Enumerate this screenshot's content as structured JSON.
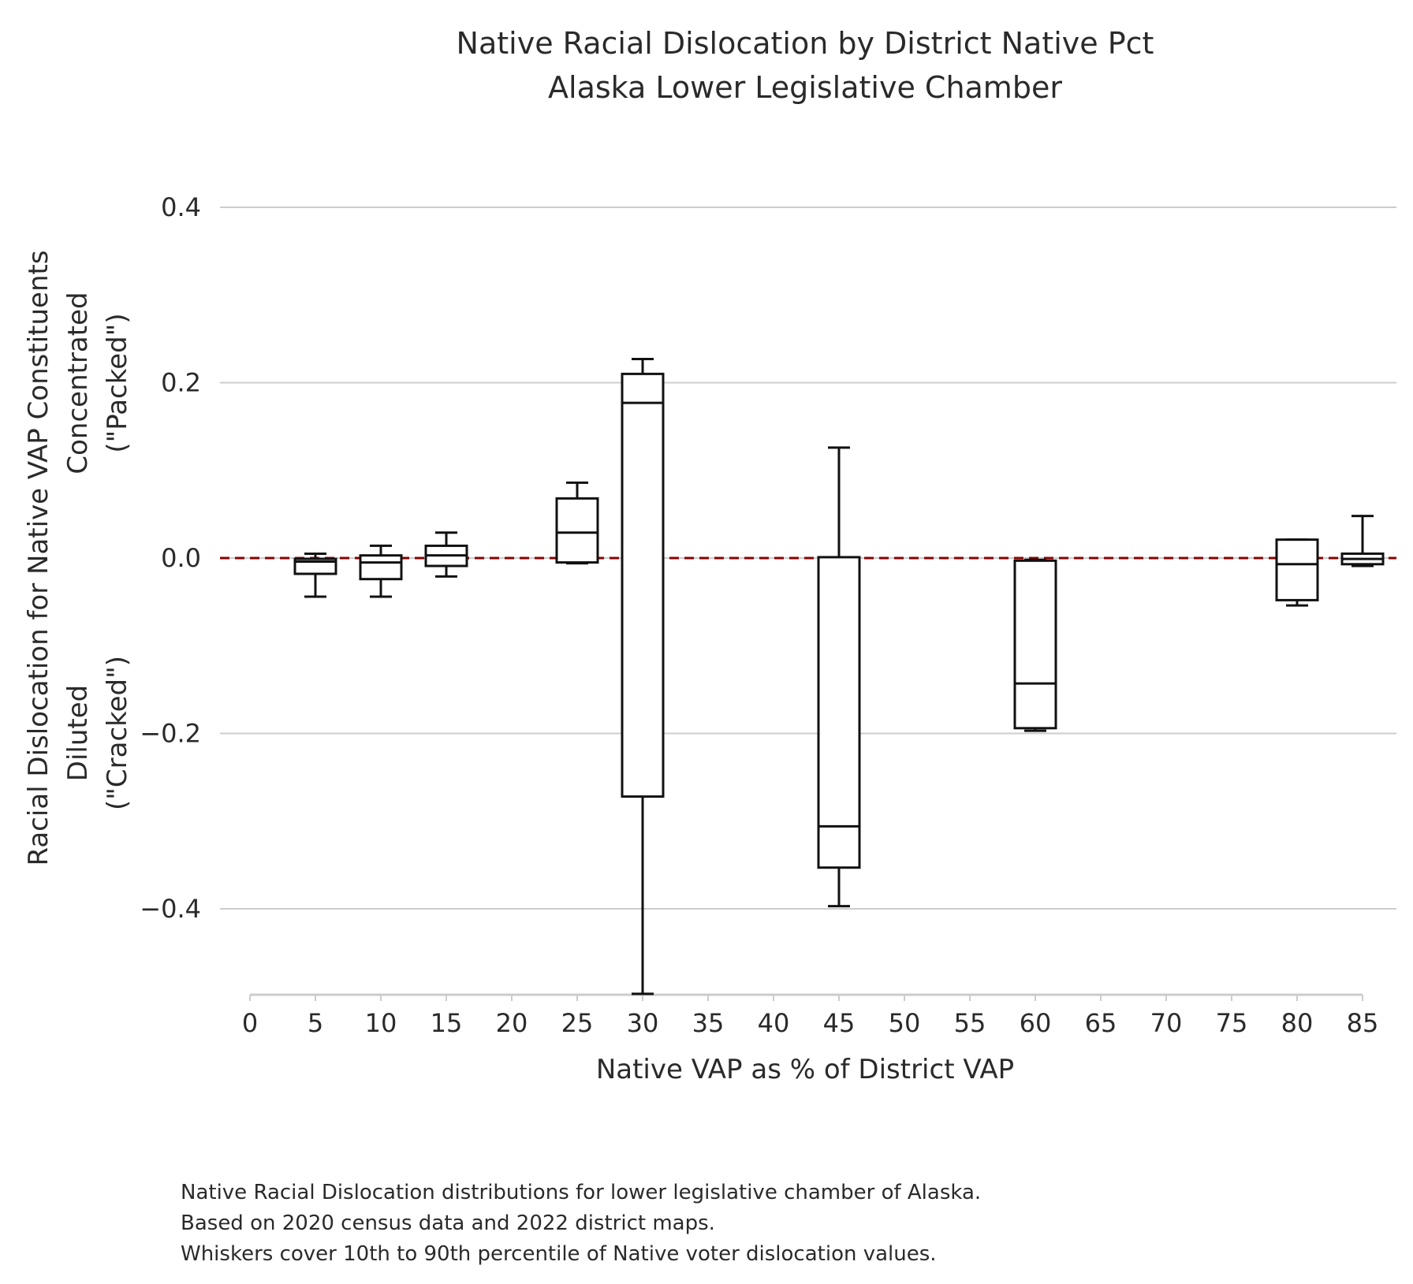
{
  "chart_data": {
    "type": "box",
    "title": [
      "Native Racial Dislocation by District Native Pct",
      "Alaska Lower Legislative Chamber"
    ],
    "xlabel": "Native VAP as % of District VAP",
    "ylabel": [
      "Racial Dislocation for Native VAP Constituents",
      "Concentrated",
      "(\"Packed\")",
      "Diluted",
      "(\"Cracked\")"
    ],
    "caption": [
      "Native Racial Dislocation distributions for lower legislative chamber of Alaska.",
      "Based on 2020 census data and 2022 district maps.",
      "Whiskers cover 10th to 90th percentile of Native voter dislocation values."
    ],
    "xlim": [
      0,
      85
    ],
    "ylim": [
      -0.5,
      0.45
    ],
    "x_ticks": [
      0,
      5,
      10,
      15,
      20,
      25,
      30,
      35,
      40,
      45,
      50,
      55,
      60,
      65,
      70,
      75,
      80,
      85
    ],
    "x_tick_labels": [
      "0",
      "5",
      "10",
      "15",
      "20",
      "25",
      "30",
      "35",
      "40",
      "45",
      "50",
      "55",
      "60",
      "65",
      "70",
      "75",
      "80",
      "85"
    ],
    "y_ticks": [
      0.4,
      0.2,
      0.0,
      -0.2,
      -0.4
    ],
    "y_tick_labels": [
      "0.4",
      "0.2",
      "0.0",
      "−0.2",
      "−0.4"
    ],
    "reference_line": {
      "y": 0.0,
      "style": "dashed",
      "color": "#8b0000"
    },
    "grid": true,
    "colors": {
      "box": "#111111",
      "grid": "#cccccc",
      "reference": "#8b0000"
    },
    "boxes": [
      {
        "x": 5,
        "whislo": -0.044,
        "q1": -0.018,
        "med": -0.004,
        "q3": -0.001,
        "whishi": 0.005
      },
      {
        "x": 10,
        "whislo": -0.044,
        "q1": -0.024,
        "med": -0.005,
        "q3": 0.003,
        "whishi": 0.014
      },
      {
        "x": 15,
        "whislo": -0.021,
        "q1": -0.009,
        "med": 0.003,
        "q3": 0.014,
        "whishi": 0.029
      },
      {
        "x": 25,
        "whislo": -0.006,
        "q1": -0.005,
        "med": 0.029,
        "q3": 0.068,
        "whishi": 0.086
      },
      {
        "x": 30,
        "whislo": -0.497,
        "q1": -0.272,
        "med": 0.177,
        "q3": 0.21,
        "whishi": 0.227
      },
      {
        "x": 45,
        "whislo": -0.397,
        "q1": -0.353,
        "med": -0.306,
        "q3": 0.001,
        "whishi": 0.126
      },
      {
        "x": 60,
        "whislo": -0.197,
        "q1": -0.194,
        "med": -0.143,
        "q3": -0.003,
        "whishi": -0.002
      },
      {
        "x": 80,
        "whislo": -0.054,
        "q1": -0.048,
        "med": -0.007,
        "q3": 0.021,
        "whishi": 0.021
      },
      {
        "x": 85,
        "whislo": -0.009,
        "q1": -0.007,
        "med": -0.001,
        "q3": 0.005,
        "whishi": 0.048
      }
    ]
  }
}
